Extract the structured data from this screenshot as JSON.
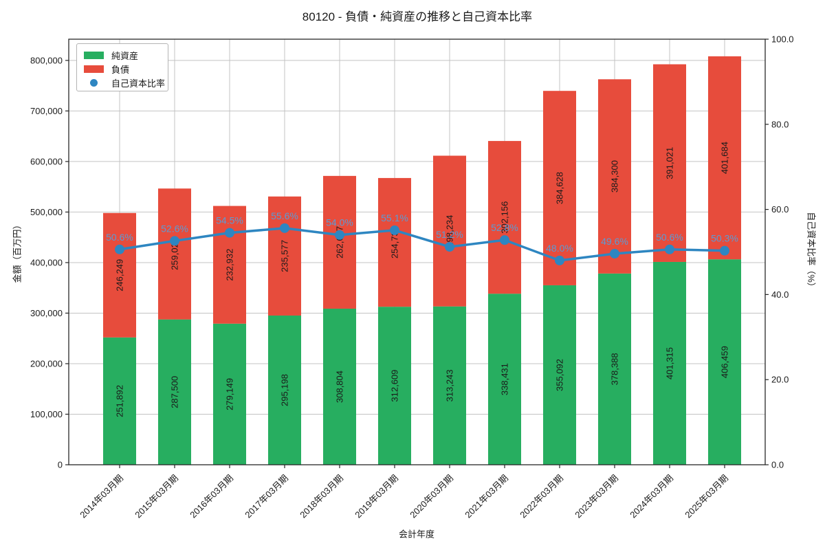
{
  "title": "80120 - 負債・純資産の推移と自己資本比率",
  "chart_data": {
    "type": "bar",
    "subtype": "stacked-bar-with-line",
    "categories": [
      "2014年03月期",
      "2015年03月期",
      "2016年03月期",
      "2017年03月期",
      "2018年03月期",
      "2019年03月期",
      "2020年03月期",
      "2021年03月期",
      "2022年03月期",
      "2023年03月期",
      "2024年03月期",
      "2025年03月期"
    ],
    "series": [
      {
        "name": "純資産",
        "kind": "bar",
        "axis": "left",
        "color": "#27ae60",
        "values": [
          251892,
          287500,
          279149,
          295198,
          308804,
          312609,
          313243,
          338431,
          355092,
          378388,
          401315,
          406459
        ]
      },
      {
        "name": "負債",
        "kind": "bar",
        "axis": "left",
        "color": "#e74c3c",
        "values": [
          246249,
          259020,
          232932,
          235577,
          262677,
          254737,
          298234,
          302156,
          384628,
          384300,
          391021,
          401684
        ]
      },
      {
        "name": "自己資本比率",
        "kind": "line",
        "axis": "right",
        "color": "#2e86c1",
        "label_color": "#5b9bd5",
        "values": [
          50.6,
          52.6,
          54.5,
          55.6,
          54.0,
          55.1,
          51.2,
          52.8,
          48.0,
          49.6,
          50.6,
          50.3
        ]
      }
    ],
    "xlabel": "会計年度",
    "ylabel_left": "金額（百万円）",
    "ylabel_right": "自己資本比率（%）",
    "ylim_left": [
      0,
      842000
    ],
    "yticks_left": [
      0,
      100000,
      200000,
      300000,
      400000,
      500000,
      600000,
      700000,
      800000
    ],
    "ylim_right": [
      0,
      100
    ],
    "yticks_right": [
      0,
      20,
      40,
      60,
      80,
      100
    ],
    "grid": true,
    "legend_position": "upper-left",
    "bar_label_color": "#1a1a1a",
    "grid_color": "#c3c3c3",
    "spine_color": "#262626"
  }
}
